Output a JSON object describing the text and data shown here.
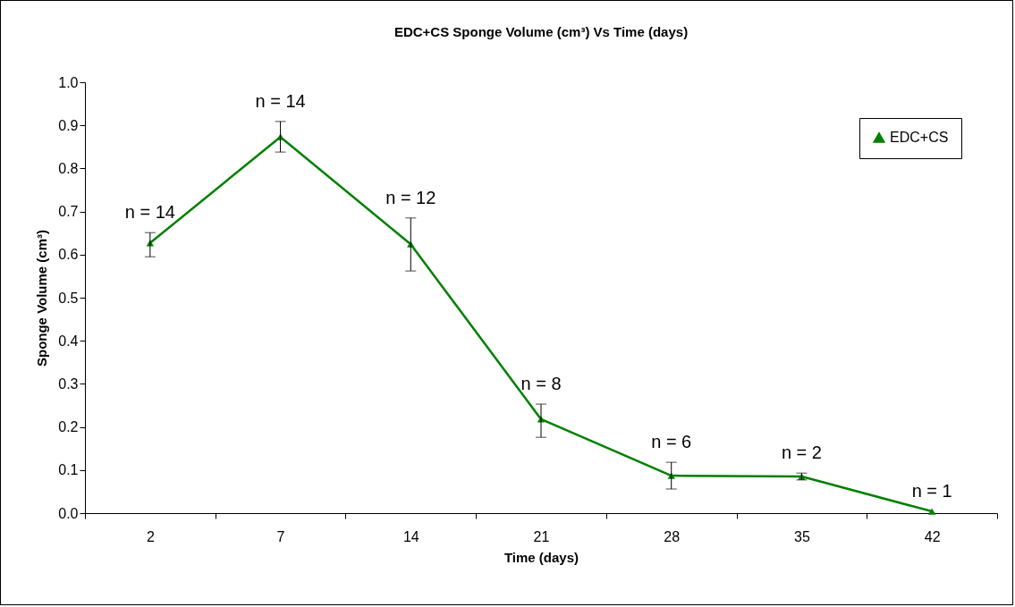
{
  "chart_data": {
    "type": "line",
    "title": "EDC+CS Sponge Volume (cm³) Vs Time (days)",
    "xlabel": "Time (days)",
    "ylabel": "Sponge Volume (cm³)",
    "categories": [
      "2",
      "7",
      "14",
      "21",
      "28",
      "35",
      "42"
    ],
    "series": [
      {
        "name": "EDC+CS",
        "color": "#008000",
        "values": [
          0.627,
          0.873,
          0.624,
          0.218,
          0.087,
          0.085,
          0.004
        ],
        "errors": [
          [
            0.595,
            0.651
          ],
          [
            0.838,
            0.909
          ],
          [
            0.562,
            0.685
          ],
          [
            0.176,
            0.253
          ],
          [
            0.056,
            0.118
          ],
          [
            0.077,
            0.093
          ],
          null
        ]
      }
    ],
    "ylim": [
      0,
      1
    ],
    "yticks": [
      {
        "value": 0,
        "label": "0.0"
      },
      {
        "value": 0.1,
        "label": "0.1"
      },
      {
        "value": 0.2,
        "label": "0.2"
      },
      {
        "value": 0.3,
        "label": "0.3"
      },
      {
        "value": 0.4,
        "label": "0.4"
      },
      {
        "value": 0.5,
        "label": "0.5"
      },
      {
        "value": 0.6,
        "label": "0.6"
      },
      {
        "value": 0.7,
        "label": "0.7"
      },
      {
        "value": 0.8,
        "label": "0.8"
      },
      {
        "value": 0.9,
        "label": "0.9"
      },
      {
        "value": 1,
        "label": "1.0"
      }
    ],
    "annotations": [
      {
        "text": "n = 14",
        "x": "2",
        "y": 0.627
      },
      {
        "text": "n = 14",
        "x": "7",
        "y": 0.873
      },
      {
        "text": "n = 12",
        "x": "14",
        "y": 0.624
      },
      {
        "text": "n = 8",
        "x": "21",
        "y": 0.218
      },
      {
        "text": "n = 6",
        "x": "28",
        "y": 0.087
      },
      {
        "text": "n = 2",
        "x": "35",
        "y": 0.085
      },
      {
        "text": "n = 1",
        "x": "42",
        "y": 0.004
      }
    ],
    "legend": "top right",
    "marker": "triangle",
    "line_style": "solid",
    "grid": false
  }
}
